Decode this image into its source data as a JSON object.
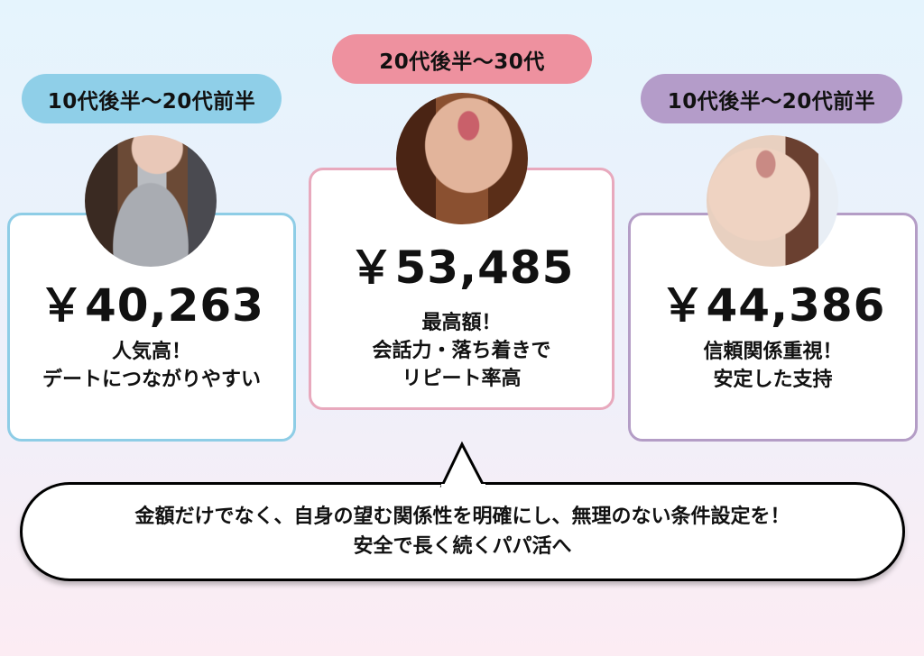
{
  "columns": [
    {
      "age_label": "10代後半〜20代前半",
      "price": "￥40,263",
      "desc": [
        "人気高！",
        "デートにつながりやすい"
      ],
      "accent": "#8fcfe8",
      "border": "#8ecde6"
    },
    {
      "age_label": "20代後半〜30代",
      "price": "￥53,485",
      "desc": [
        "最高額！",
        "会話力・落ち着きで",
        "リピート率高"
      ],
      "accent": "#ee919f",
      "border": "#e8a9bd"
    },
    {
      "age_label": "10代後半〜20代前半",
      "price": "￥44,386",
      "desc": [
        "信頼関係重視！",
        "安定した支持"
      ],
      "accent": "#b49cc9",
      "border": "#b49dc6"
    }
  ],
  "message": {
    "line1": "金額だけでなく、自身の望む関係性を明確にし、無理のない条件設定を！",
    "line2": "安全で長く続くパパ活へ"
  }
}
